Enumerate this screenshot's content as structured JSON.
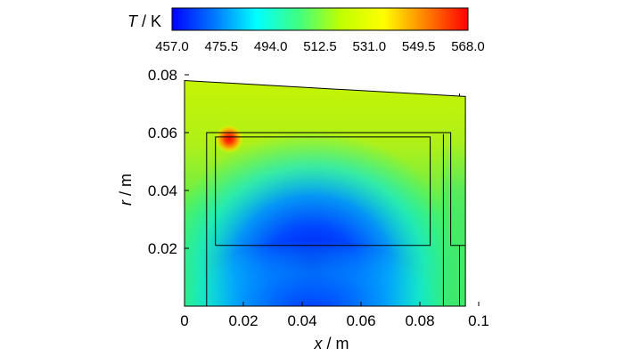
{
  "chart_data": {
    "type": "heatmap",
    "title": "",
    "colorbar": {
      "label_var": "T",
      "label_unit": " / K",
      "ticks": [
        "457.0",
        "475.5",
        "494.0",
        "512.5",
        "531.0",
        "549.5",
        "568.0"
      ],
      "range": [
        457.0,
        568.0
      ],
      "colors": [
        "#0000ff",
        "#0078ff",
        "#00ffff",
        "#40ff80",
        "#c0ff00",
        "#ffff00",
        "#ff8000",
        "#ff0000"
      ]
    },
    "xlabel": "x",
    "xlabel_unit": " / m",
    "ylabel": "r",
    "ylabel_unit": " / m",
    "xlim": [
      0,
      0.1
    ],
    "ylim": [
      0,
      0.08
    ],
    "xticks": [
      {
        "value": 0,
        "label": "0"
      },
      {
        "value": 0.02,
        "label": "0.02"
      },
      {
        "value": 0.04,
        "label": "0.04"
      },
      {
        "value": 0.06,
        "label": "0.06"
      },
      {
        "value": 0.08,
        "label": "0.08"
      },
      {
        "value": 0.1,
        "label": "0.1"
      }
    ],
    "yticks": [
      {
        "value": 0.02,
        "label": "0.02"
      },
      {
        "value": 0.04,
        "label": "0.04"
      },
      {
        "value": 0.06,
        "label": "0.06"
      },
      {
        "value": 0.08,
        "label": "0.08"
      }
    ],
    "domain_outline": [
      [
        0,
        0
      ],
      [
        0,
        0.078
      ],
      [
        0.0955,
        0.0725
      ],
      [
        0.0955,
        0
      ],
      [
        0,
        0
      ]
    ],
    "internal_boundaries": [
      [
        [
          0.0075,
          0
        ],
        [
          0.0075,
          0.06
        ],
        [
          0.0905,
          0.06
        ],
        [
          0.0905,
          0.021
        ],
        [
          0.0955,
          0.021
        ]
      ],
      [
        [
          0.0105,
          0.021
        ],
        [
          0.0105,
          0.0585
        ],
        [
          0.0835,
          0.0585
        ],
        [
          0.0835,
          0.021
        ],
        [
          0.0105,
          0.021
        ]
      ],
      [
        [
          0.088,
          0
        ],
        [
          0.088,
          0.0595
        ]
      ],
      [
        [
          0.0935,
          0
        ],
        [
          0.0935,
          0.021
        ]
      ],
      [
        [
          0.0935,
          0.0725
        ],
        [
          0.0935,
          0.0735
        ]
      ]
    ],
    "temperature_features": [
      {
        "name": "cold core",
        "x": 0.05,
        "r": 0.025,
        "T": 458
      },
      {
        "name": "hot spot",
        "x": 0.015,
        "r": 0.0575,
        "T": 568
      },
      {
        "name": "warm outer region",
        "r": 0.07,
        "T": 525
      }
    ]
  }
}
